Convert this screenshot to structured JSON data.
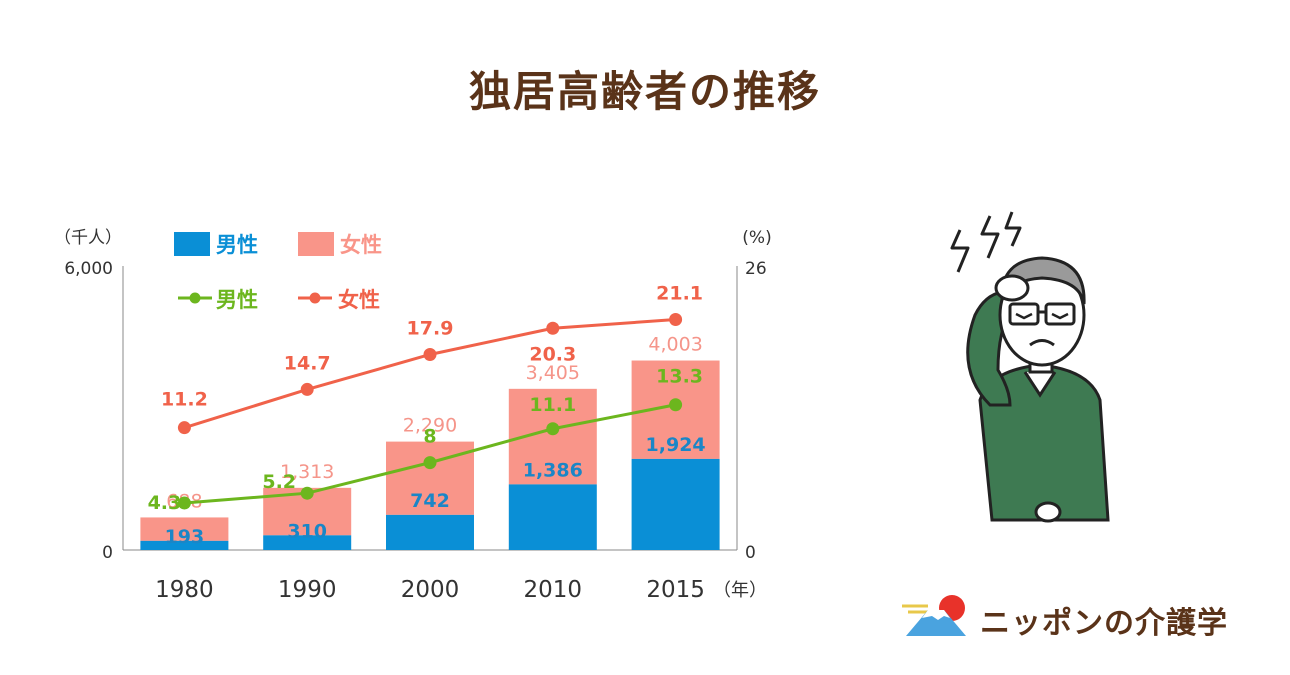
{
  "page": {
    "title": "独居高齢者の推移"
  },
  "chart_data": {
    "type": "bar",
    "title": "独居高齢者の推移",
    "categories": [
      "1980",
      "1990",
      "2000",
      "2010",
      "2015"
    ],
    "x_unit": "（年）",
    "left_axis": {
      "unit": "（千人）",
      "ticks": [
        "0",
        "6,000"
      ],
      "ylim": [
        0,
        6000
      ]
    },
    "right_axis": {
      "unit": "(%)",
      "ticks": [
        "0",
        "26"
      ],
      "ylim": [
        0,
        26
      ]
    },
    "bar_series": [
      {
        "name": "男性",
        "stack": "total",
        "color": "#0a8fd6",
        "label_color": "#1a86c7",
        "values": [
          193,
          310,
          742,
          1386,
          1924
        ],
        "labels": [
          "193",
          "310",
          "742",
          "1,386",
          "1,924"
        ]
      },
      {
        "name": "女性",
        "stack": "total",
        "color": "#f99589",
        "label_color": "#f5958a",
        "values": [
          495,
          1003,
          1548,
          2019,
          2079
        ],
        "totals": [
          688,
          1313,
          2290,
          3405,
          4003
        ],
        "labels": [
          "688",
          "1,313",
          "2,290",
          "3,405",
          "4,003"
        ]
      }
    ],
    "line_series": [
      {
        "name": "男性",
        "axis": "right",
        "color": "#6cb61e",
        "values": [
          4.3,
          5.2,
          8,
          11.1,
          13.3
        ],
        "labels": [
          "4.3",
          "5.2",
          "8",
          "11.1",
          "13.3"
        ]
      },
      {
        "name": "女性",
        "axis": "right",
        "color": "#f0624a",
        "values": [
          11.2,
          14.7,
          17.9,
          20.3,
          21.1
        ],
        "labels": [
          "11.2",
          "14.7",
          "17.9",
          "20.3",
          "21.1"
        ]
      }
    ],
    "legend": {
      "placement": "top-left"
    },
    "grid": false
  },
  "brand": {
    "name": "ニッポンの介護学"
  },
  "colors": {
    "title": "#5a3319",
    "axis_text": "#333333",
    "axis_line": "#888888",
    "jacket": "#3e7a52"
  },
  "illustration": {
    "icon": "troubled-elderly-man-icon"
  }
}
